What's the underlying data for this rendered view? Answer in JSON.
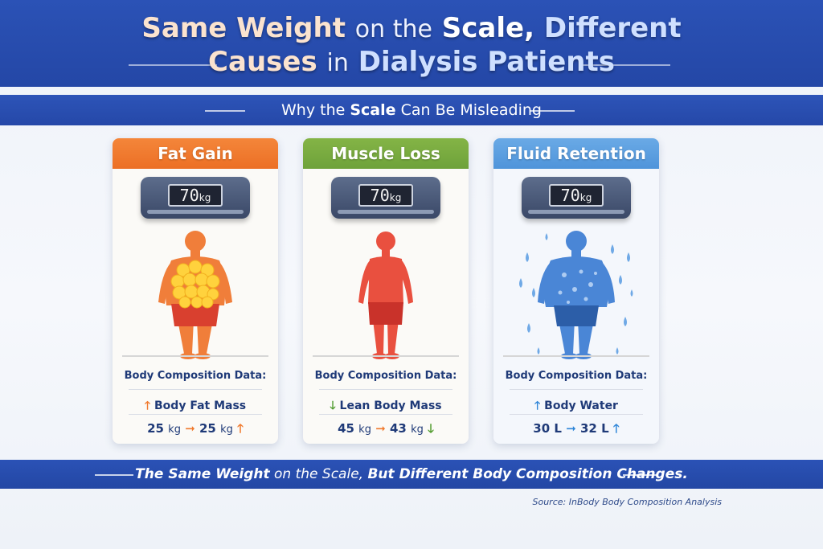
{
  "title": {
    "line1": [
      "Same Weight",
      "on the",
      "Scale,",
      "Different"
    ],
    "line2": [
      "Causes",
      "in",
      "Dialysis Patients"
    ]
  },
  "subtitle": {
    "parts": [
      "Why the",
      "Scale",
      "Can Be Misleading"
    ]
  },
  "cards": [
    {
      "title": "Fat Gain",
      "scale_value": "70",
      "scale_unit": "kg",
      "composition_label": "Body Composition Data:",
      "metric_label": "Body Fat Mass",
      "from_value": "25",
      "to_value": "25",
      "unit": "kg",
      "header_color": "#f07a2e",
      "arrow_color": "#f07a2e"
    },
    {
      "title": "Muscle Loss",
      "scale_value": "70",
      "scale_unit": "kg",
      "composition_label": "Body Composition Data:",
      "metric_label": "Lean Body Mass",
      "from_value": "45",
      "to_value": "43",
      "unit": "kg",
      "header_color": "#7aab3f",
      "arrow_color": "#4f9a2c"
    },
    {
      "title": "Fluid Retention",
      "scale_value": "70",
      "scale_unit": "kg",
      "composition_label": "Body Composition Data:",
      "metric_label": "Body Water",
      "from_value": "30",
      "to_value": "32",
      "unit": "L",
      "header_color": "#5b9fe0",
      "arrow_color": "#2f86d8"
    }
  ],
  "footer": {
    "parts": [
      "The Same Weight",
      "on the Scale,",
      "But Different Body Composition Changes."
    ]
  },
  "source": {
    "prefix": "Source:",
    "text": "InBody Body Composition Analysis"
  }
}
